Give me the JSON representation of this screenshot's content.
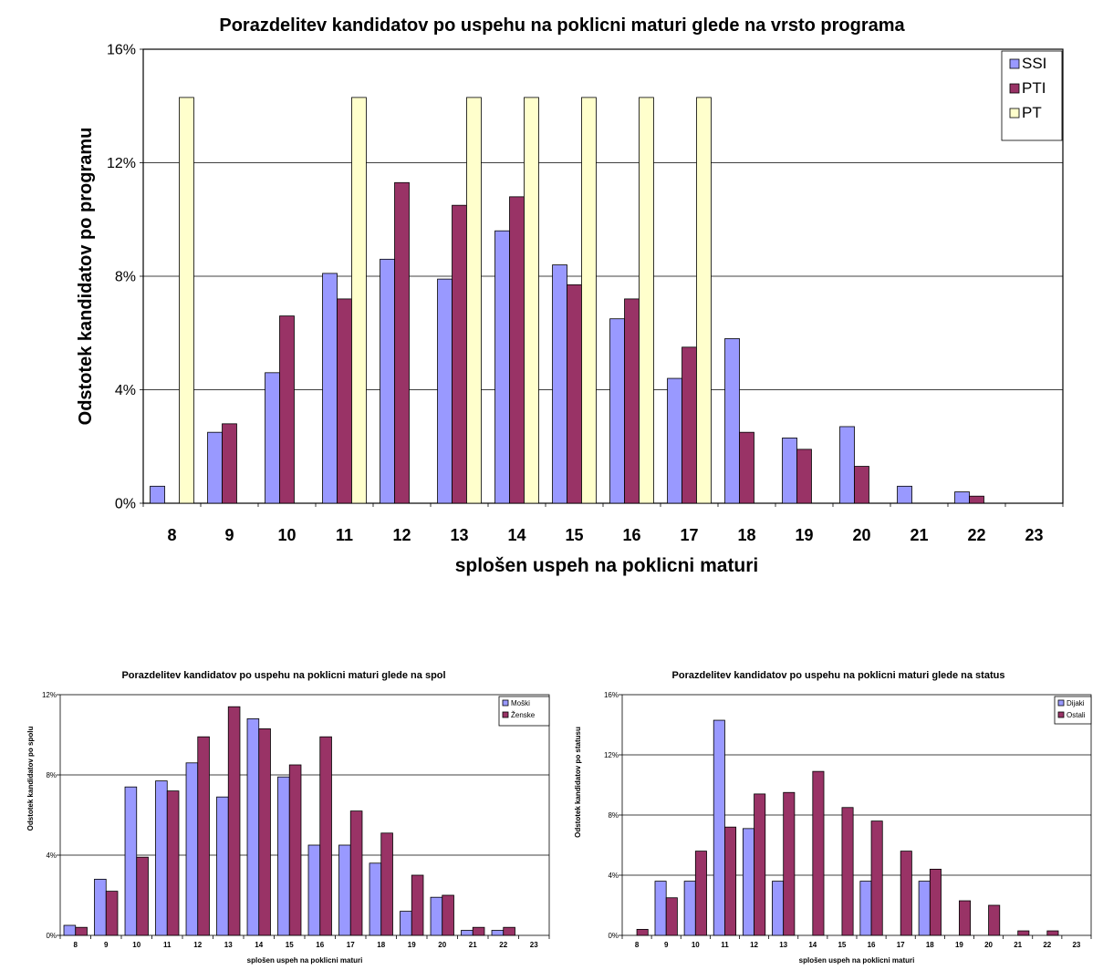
{
  "chart_data": [
    {
      "id": "main",
      "type": "bar",
      "title": "Porazdelitev kandidatov po uspehu na poklicni maturi glede na vrsto programa",
      "xlabel": "splošen uspeh na poklicni maturi",
      "ylabel": "Odstotek kandidatov po programu",
      "ylim": [
        0,
        16
      ],
      "yticks": [
        "0%",
        "4%",
        "8%",
        "12%",
        "16%"
      ],
      "grid": true,
      "legend_position": "top-right",
      "categories": [
        "8",
        "9",
        "10",
        "11",
        "12",
        "13",
        "14",
        "15",
        "16",
        "17",
        "18",
        "19",
        "20",
        "21",
        "22",
        "23"
      ],
      "series": [
        {
          "name": "SSI",
          "color": "#9999ff",
          "values": [
            0.6,
            2.5,
            4.6,
            8.1,
            8.6,
            7.9,
            9.6,
            8.4,
            6.5,
            4.4,
            5.8,
            2.3,
            2.7,
            0.6,
            0.4,
            0
          ]
        },
        {
          "name": "PTI",
          "color": "#993366",
          "values": [
            0,
            2.8,
            6.6,
            7.2,
            11.3,
            10.5,
            10.8,
            7.7,
            7.2,
            5.5,
            2.5,
            1.9,
            1.3,
            0,
            0.25,
            0
          ]
        },
        {
          "name": "PT",
          "color": "#ffffcc",
          "values": [
            14.3,
            0,
            0,
            14.3,
            0,
            14.3,
            14.3,
            14.3,
            14.3,
            14.3,
            0,
            0,
            0,
            0,
            0,
            0
          ]
        }
      ]
    },
    {
      "id": "spol",
      "type": "bar",
      "title": "Porazdelitev kandidatov po uspehu na poklicni maturi glede na spol",
      "xlabel": "splošen uspeh na poklicni maturi",
      "ylabel": "Odstotek kandidatov po spolu",
      "ylim": [
        0,
        12
      ],
      "yticks": [
        "0%",
        "4%",
        "8%",
        "12%"
      ],
      "grid": true,
      "legend_position": "top-right",
      "categories": [
        "8",
        "9",
        "10",
        "11",
        "12",
        "13",
        "14",
        "15",
        "16",
        "17",
        "18",
        "19",
        "20",
        "21",
        "22",
        "23"
      ],
      "series": [
        {
          "name": "Moški",
          "color": "#9999ff",
          "values": [
            0.5,
            2.8,
            7.4,
            7.7,
            8.6,
            6.9,
            10.8,
            7.9,
            4.5,
            4.5,
            3.6,
            1.2,
            1.9,
            0.25,
            0.25,
            0
          ]
        },
        {
          "name": "Ženske",
          "color": "#993366",
          "values": [
            0.4,
            2.2,
            3.9,
            7.2,
            9.9,
            11.4,
            10.3,
            8.5,
            9.9,
            6.2,
            5.1,
            3.0,
            2.0,
            0.4,
            0.4,
            0
          ]
        }
      ]
    },
    {
      "id": "status",
      "type": "bar",
      "title": "Porazdelitev kandidatov po uspehu na poklicni maturi glede na status",
      "xlabel": "splošen uspeh na poklicni maturi",
      "ylabel": "Odstotek kandidatov po statusu",
      "ylim": [
        0,
        16
      ],
      "yticks": [
        "0%",
        "4%",
        "8%",
        "12%",
        "16%"
      ],
      "grid": true,
      "legend_position": "top-right",
      "categories": [
        "8",
        "9",
        "10",
        "11",
        "12",
        "13",
        "14",
        "15",
        "16",
        "17",
        "18",
        "19",
        "20",
        "21",
        "22",
        "23"
      ],
      "series": [
        {
          "name": "Dijaki",
          "color": "#9999ff",
          "values": [
            0,
            3.6,
            3.6,
            14.3,
            7.1,
            3.6,
            0,
            0,
            3.6,
            0,
            3.6,
            0,
            0,
            0,
            0,
            0
          ]
        },
        {
          "name": "Ostali",
          "color": "#993366",
          "values": [
            0.4,
            2.5,
            5.6,
            7.2,
            9.4,
            9.5,
            10.9,
            8.5,
            7.6,
            5.6,
            4.4,
            2.3,
            2.0,
            0.3,
            0.3,
            0
          ]
        }
      ]
    }
  ]
}
